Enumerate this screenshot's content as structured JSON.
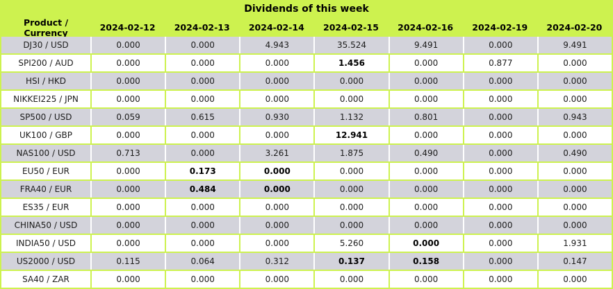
{
  "title": "Dividends of this week",
  "colors": {
    "table_background_green": "#cdf24f",
    "gray_row": "#d3d3db",
    "white_row": "#ffffff",
    "text": "#1c1c1c",
    "bold_text": "#000000"
  },
  "chart_data": {
    "type": "table",
    "title": "Dividends of this week",
    "columns": [
      "Product / Currency",
      "2024-02-12",
      "2024-02-13",
      "2024-02-14",
      "2024-02-15",
      "2024-02-16",
      "2024-02-19",
      "2024-02-20"
    ],
    "rows": [
      {
        "product": "DJ30 / USD",
        "values": [
          "0.000",
          "0.000",
          "4.943",
          "35.524",
          "9.491",
          "0.000",
          "9.491"
        ],
        "bold_indices": []
      },
      {
        "product": "SPI200 / AUD",
        "values": [
          "0.000",
          "0.000",
          "0.000",
          "1.456",
          "0.000",
          "0.877",
          "0.000"
        ],
        "bold_indices": [
          3
        ]
      },
      {
        "product": "HSI / HKD",
        "values": [
          "0.000",
          "0.000",
          "0.000",
          "0.000",
          "0.000",
          "0.000",
          "0.000"
        ],
        "bold_indices": []
      },
      {
        "product": "NIKKEI225 / JPN",
        "values": [
          "0.000",
          "0.000",
          "0.000",
          "0.000",
          "0.000",
          "0.000",
          "0.000"
        ],
        "bold_indices": []
      },
      {
        "product": "SP500 / USD",
        "values": [
          "0.059",
          "0.615",
          "0.930",
          "1.132",
          "0.801",
          "0.000",
          "0.943"
        ],
        "bold_indices": []
      },
      {
        "product": "UK100 / GBP",
        "values": [
          "0.000",
          "0.000",
          "0.000",
          "12.941",
          "0.000",
          "0.000",
          "0.000"
        ],
        "bold_indices": [
          3
        ]
      },
      {
        "product": "NAS100 / USD",
        "values": [
          "0.713",
          "0.000",
          "3.261",
          "1.875",
          "0.490",
          "0.000",
          "0.490"
        ],
        "bold_indices": []
      },
      {
        "product": "EU50 / EUR",
        "values": [
          "0.000",
          "0.173",
          "0.000",
          "0.000",
          "0.000",
          "0.000",
          "0.000"
        ],
        "bold_indices": [
          1,
          2
        ]
      },
      {
        "product": "FRA40 / EUR",
        "values": [
          "0.000",
          "0.484",
          "0.000",
          "0.000",
          "0.000",
          "0.000",
          "0.000"
        ],
        "bold_indices": [
          1,
          2
        ]
      },
      {
        "product": "ES35 / EUR",
        "values": [
          "0.000",
          "0.000",
          "0.000",
          "0.000",
          "0.000",
          "0.000",
          "0.000"
        ],
        "bold_indices": []
      },
      {
        "product": "CHINA50 / USD",
        "values": [
          "0.000",
          "0.000",
          "0.000",
          "0.000",
          "0.000",
          "0.000",
          "0.000"
        ],
        "bold_indices": []
      },
      {
        "product": "INDIA50 / USD",
        "values": [
          "0.000",
          "0.000",
          "0.000",
          "5.260",
          "0.000",
          "0.000",
          "1.931"
        ],
        "bold_indices": [
          4
        ]
      },
      {
        "product": "US2000 / USD",
        "values": [
          "0.115",
          "0.064",
          "0.312",
          "0.137",
          "0.158",
          "0.000",
          "0.147"
        ],
        "bold_indices": [
          3,
          4
        ]
      },
      {
        "product": "SA40 / ZAR",
        "values": [
          "0.000",
          "0.000",
          "0.000",
          "0.000",
          "0.000",
          "0.000",
          "0.000"
        ],
        "bold_indices": []
      }
    ]
  }
}
